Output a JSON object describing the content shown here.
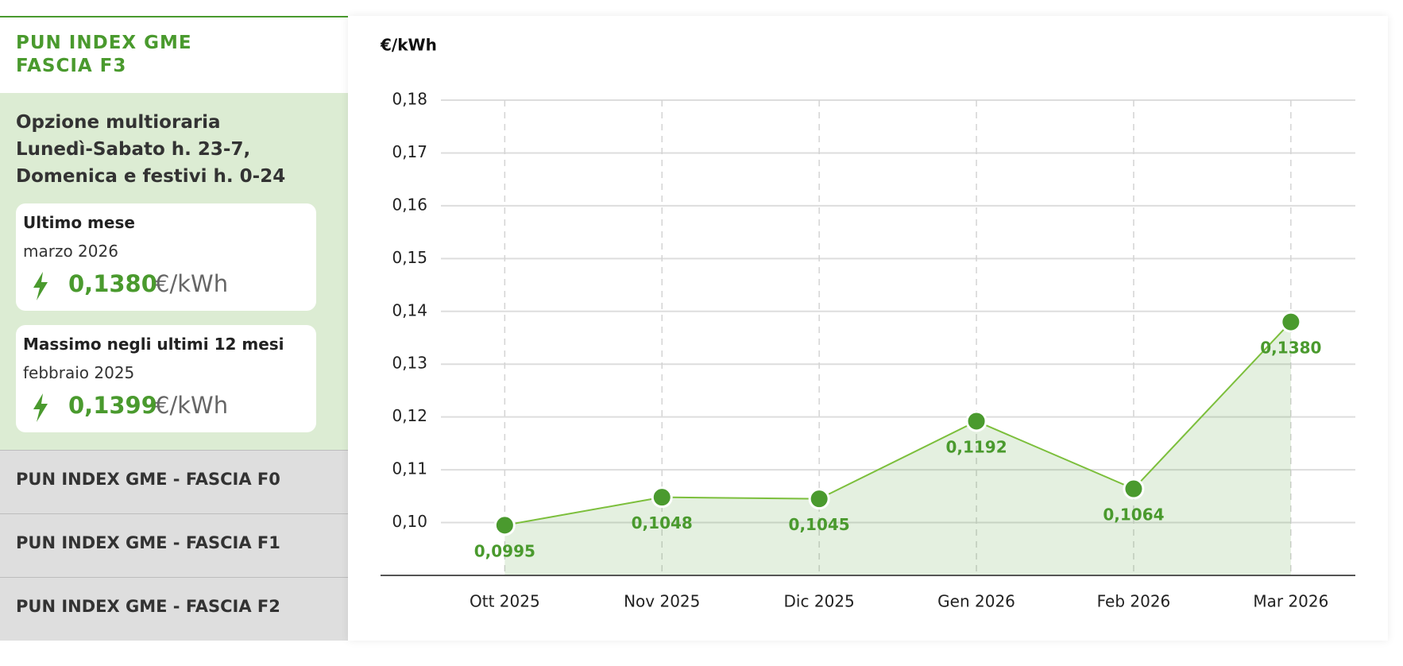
{
  "sidebar": {
    "title": "PUN INDEX GME FASCIA F3",
    "description": [
      "Opzione multioraria",
      "Lunedì-Sabato h. 23-7,",
      "Domenica e festivi h. 0-24"
    ],
    "cards": [
      {
        "label": "Ultimo mese",
        "period": "marzo 2026",
        "value": "0,1380",
        "unit": "€/kWh"
      },
      {
        "label": "Massimo negli ultimi 12 mesi",
        "period": "febbraio 2025",
        "value": "0,1399",
        "unit": "€/kWh"
      }
    ],
    "menu": [
      "PUN INDEX GME - FASCIA F0",
      "PUN INDEX GME - FASCIA F1",
      "PUN INDEX GME - FASCIA F2"
    ]
  },
  "chart_data": {
    "type": "area",
    "y_label": "€/kWh",
    "categories": [
      "Ott 2025",
      "Nov 2025",
      "Dic 2025",
      "Gen 2026",
      "Feb 2026",
      "Mar 2026"
    ],
    "values": [
      0.0995,
      0.1048,
      0.1045,
      0.1192,
      0.1064,
      0.138
    ],
    "value_labels": [
      "0,0995",
      "0,1048",
      "0,1045",
      "0,1192",
      "0,1064",
      "0,1380"
    ],
    "color": "#4a9a2e",
    "ylim": [
      0.09,
      0.18
    ],
    "yticks": [
      {
        "value": 0.1,
        "label": "0,10"
      },
      {
        "value": 0.11,
        "label": "0,11"
      },
      {
        "value": 0.12,
        "label": "0,12"
      },
      {
        "value": 0.13,
        "label": "0,13"
      },
      {
        "value": 0.14,
        "label": "0,14"
      },
      {
        "value": 0.15,
        "label": "0,15"
      },
      {
        "value": 0.16,
        "label": "0,16"
      },
      {
        "value": 0.17,
        "label": "0,17"
      },
      {
        "value": 0.18,
        "label": "0,18"
      }
    ],
    "grid": true
  }
}
